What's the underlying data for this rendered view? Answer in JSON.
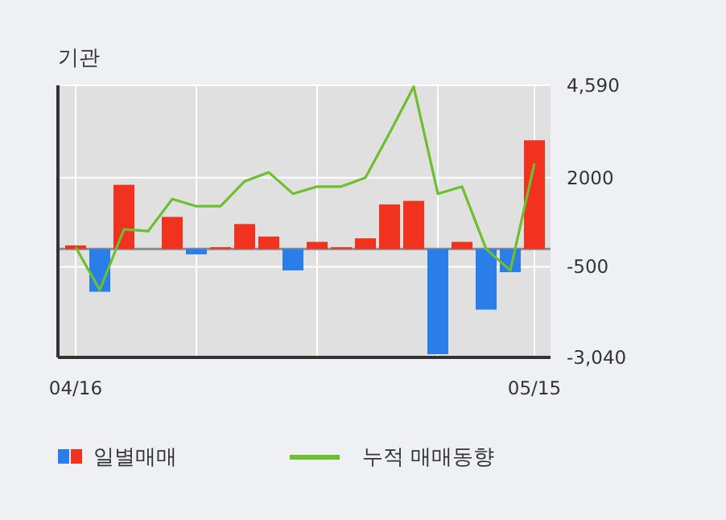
{
  "chart_data": {
    "type": "bar",
    "title": "기관",
    "categories": [
      "04/16",
      null,
      null,
      null,
      null,
      null,
      null,
      null,
      null,
      null,
      null,
      null,
      null,
      null,
      null,
      null,
      null,
      null,
      null,
      "05/15"
    ],
    "series": [
      {
        "name": "일별매매",
        "values": [
          100,
          -1200,
          1800,
          0,
          900,
          -150,
          50,
          700,
          350,
          -600,
          200,
          50,
          300,
          1250,
          1350,
          -2950,
          200,
          -1700,
          -650,
          3050
        ],
        "colors": [
          "#f0321e",
          "#2b7de9",
          "#f0321e",
          "#f0321e",
          "#f0321e",
          "#2b7de9",
          "#f0321e",
          "#f0321e",
          "#f0321e",
          "#2b7de9",
          "#f0321e",
          "#f0321e",
          "#f0321e",
          "#f0321e",
          "#f0321e",
          "#2b7de9",
          "#f0321e",
          "#2b7de9",
          "#2b7de9",
          "#f0321e"
        ]
      },
      {
        "name": "누적 매매동향",
        "type": "line",
        "color": "#6cbf2e",
        "values": [
          50,
          -1150,
          550,
          500,
          1400,
          1200,
          1200,
          1900,
          2150,
          1550,
          1750,
          1750,
          2000,
          3250,
          4550,
          1550,
          1750,
          0,
          -600,
          2400
        ]
      }
    ],
    "ylim": [
      -3040,
      4590
    ],
    "yticks": [
      {
        "value": 4590,
        "label": "4,590"
      },
      2000,
      -500,
      {
        "value": -3040,
        "label": "-3,040"
      }
    ],
    "ref_lines": [
      {
        "axis": "y",
        "value": 0,
        "color": "#8c8c8c"
      }
    ],
    "grid": true,
    "legend": "bottom left"
  }
}
